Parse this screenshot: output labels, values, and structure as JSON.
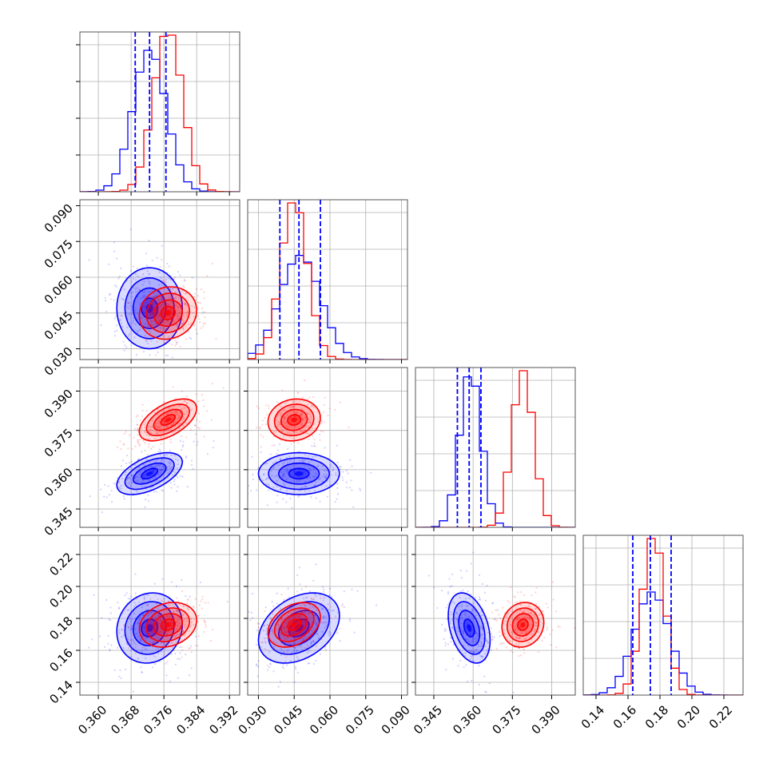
{
  "chart_data": {
    "type": "corner",
    "grid": true,
    "series": [
      {
        "color": "#0000ff",
        "params": [
          {
            "mean": 0.3725,
            "sd": 0.004,
            "quantiles": [
              0.369,
              0.3725,
              0.3765
            ]
          },
          {
            "mean": 0.0475,
            "sd": 0.0085,
            "quantiles": [
              0.039,
              0.047,
              0.056
            ]
          },
          {
            "mean": 0.359,
            "sd": 0.004,
            "quantiles": [
              0.354,
              0.3585,
              0.363
            ]
          },
          {
            "mean": 0.175,
            "sd": 0.011,
            "quantiles": [
              0.163,
              0.174,
              0.187
            ]
          }
        ],
        "pairs": [
          {
            "i": 1,
            "j": 0,
            "cx": 0.3725,
            "cy": 0.047,
            "sx": 0.004,
            "sy": 0.0085,
            "rho": 0.0
          },
          {
            "i": 2,
            "j": 0,
            "cx": 0.3725,
            "cy": 0.3585,
            "sx": 0.004,
            "sy": 0.004,
            "rho": 0.55
          },
          {
            "i": 2,
            "j": 1,
            "cx": 0.047,
            "cy": 0.3585,
            "sx": 0.0085,
            "sy": 0.004,
            "rho": 0.0
          },
          {
            "i": 3,
            "j": 0,
            "cx": 0.3725,
            "cy": 0.174,
            "sx": 0.004,
            "sy": 0.011,
            "rho": 0.1
          },
          {
            "i": 3,
            "j": 1,
            "cx": 0.047,
            "cy": 0.174,
            "sx": 0.0085,
            "sy": 0.011,
            "rho": 0.35
          },
          {
            "i": 3,
            "j": 2,
            "cx": 0.3585,
            "cy": 0.174,
            "sx": 0.004,
            "sy": 0.011,
            "rho": -0.35
          }
        ]
      },
      {
        "color": "#ff0000",
        "params": [
          {
            "mean": 0.377,
            "sd": 0.0035
          },
          {
            "mean": 0.045,
            "sd": 0.0055
          },
          {
            "mean": 0.379,
            "sd": 0.004
          },
          {
            "mean": 0.176,
            "sd": 0.007
          }
        ],
        "pairs": [
          {
            "i": 1,
            "j": 0,
            "cx": 0.377,
            "cy": 0.045,
            "sx": 0.0035,
            "sy": 0.0055,
            "rho": 0.1
          },
          {
            "i": 2,
            "j": 0,
            "cx": 0.377,
            "cy": 0.379,
            "sx": 0.0035,
            "sy": 0.004,
            "rho": 0.55
          },
          {
            "i": 2,
            "j": 1,
            "cx": 0.045,
            "cy": 0.379,
            "sx": 0.0055,
            "sy": 0.004,
            "rho": 0.1
          },
          {
            "i": 3,
            "j": 0,
            "cx": 0.377,
            "cy": 0.176,
            "sx": 0.0035,
            "sy": 0.007,
            "rho": 0.2
          },
          {
            "i": 3,
            "j": 1,
            "cx": 0.045,
            "cy": 0.176,
            "sx": 0.0055,
            "sy": 0.007,
            "rho": 0.35
          },
          {
            "i": 3,
            "j": 2,
            "cx": 0.379,
            "cy": 0.176,
            "sx": 0.004,
            "sy": 0.007,
            "rho": 0.1
          }
        ]
      }
    ],
    "axes": [
      {
        "range": [
          0.3555,
          0.3945
        ],
        "ticks": [
          "0.360",
          "0.368",
          "0.376",
          "0.384",
          "0.392"
        ]
      },
      {
        "range": [
          0.0255,
          0.0925
        ],
        "ticks": [
          "0.030",
          "0.045",
          "0.060",
          "0.075",
          "0.090"
        ]
      },
      {
        "range": [
          0.338,
          0.399
        ],
        "ticks": [
          "0.345",
          "0.360",
          "0.375",
          "0.390"
        ]
      },
      {
        "range": [
          0.132,
          0.232
        ],
        "ticks": [
          "0.14",
          "0.16",
          "0.18",
          "0.20",
          "0.22"
        ]
      }
    ]
  }
}
